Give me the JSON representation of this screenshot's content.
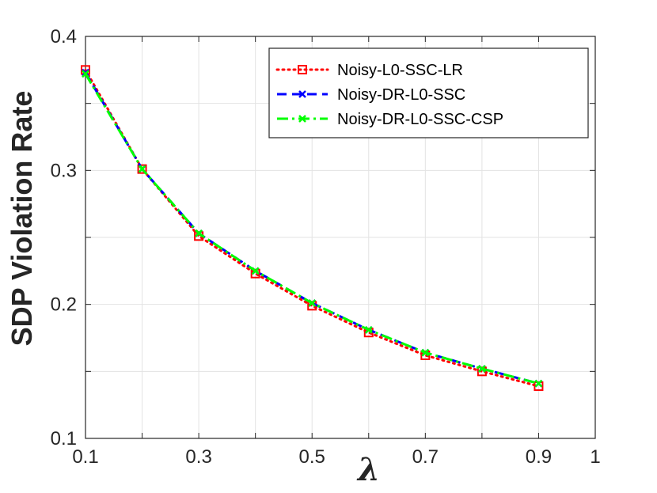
{
  "chart_data": {
    "type": "line",
    "title": "",
    "xlabel": "λ",
    "ylabel": "SDP Violation Rate",
    "xlim": [
      0.1,
      1.0
    ],
    "ylim": [
      0.1,
      0.4
    ],
    "xticks": [
      0.1,
      0.3,
      0.5,
      0.7,
      0.9,
      1.0
    ],
    "xtick_labels": [
      "0.1",
      "0.3",
      "0.5",
      "0.7",
      "0.9",
      "1"
    ],
    "yticks": [
      0.1,
      0.2,
      0.3,
      0.4
    ],
    "ytick_labels": [
      "0.1",
      "0.2",
      "0.3",
      "0.4"
    ],
    "grid": true,
    "legend_position": "top-right",
    "x": [
      0.1,
      0.2,
      0.3,
      0.4,
      0.5,
      0.6,
      0.7,
      0.8,
      0.9
    ],
    "series": [
      {
        "name": "Noisy-L0-SSC-LR",
        "color": "#ff0000",
        "line_style": "dotted",
        "marker": "square",
        "values": [
          0.375,
          0.301,
          0.251,
          0.223,
          0.199,
          0.179,
          0.162,
          0.15,
          0.139
        ]
      },
      {
        "name": "Noisy-DR-L0-SSC",
        "color": "#0000ff",
        "line_style": "dashed",
        "marker": "x",
        "values": [
          0.373,
          0.301,
          0.253,
          0.225,
          0.201,
          0.181,
          0.164,
          0.152,
          0.141
        ]
      },
      {
        "name": "Noisy-DR-L0-SSC-CSP",
        "color": "#00ff00",
        "line_style": "dash-dot",
        "marker": "x",
        "values": [
          0.372,
          0.301,
          0.253,
          0.225,
          0.201,
          0.181,
          0.164,
          0.152,
          0.141
        ]
      }
    ]
  }
}
